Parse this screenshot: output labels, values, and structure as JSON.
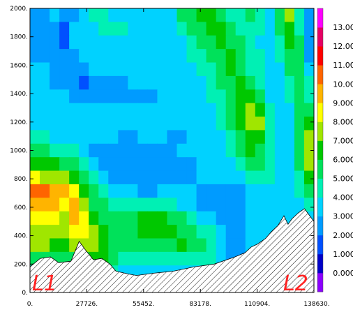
{
  "chart_data": {
    "type": "heatmap",
    "title": "",
    "xlabel": "",
    "ylabel": "",
    "xlim": [
      0,
      138630
    ],
    "ylim": [
      0,
      2000
    ],
    "x_ticks": [
      "0.",
      "27726.",
      "55452.",
      "83178.",
      "110904.",
      "138630."
    ],
    "x_tick_values": [
      0,
      27726,
      55452,
      83178,
      110904,
      138630
    ],
    "y_ticks": [
      "0.",
      "200.",
      "400.",
      "600.",
      "800.",
      "1000.",
      "1200.",
      "1400.",
      "1600.",
      "1800.",
      "2000."
    ],
    "y_tick_values": [
      0,
      200,
      400,
      600,
      800,
      1000,
      1200,
      1400,
      1600,
      1800,
      2000
    ],
    "grid": false,
    "colorbar": {
      "labels": [
        "0.000",
        "1.000",
        "2.000",
        "3.000",
        "4.000",
        "5.000",
        "6.000",
        "7.000",
        "8.000",
        "9.000",
        "10.00",
        "11.00",
        "12.00",
        "13.00"
      ],
      "level_values": [
        -1,
        0,
        1,
        2,
        3,
        4,
        5,
        6,
        7,
        8,
        9,
        10,
        11,
        12,
        13,
        14
      ],
      "colors": [
        "#8b00ff",
        "#0000c8",
        "#0050ff",
        "#009bff",
        "#00d2ff",
        "#00f0b4",
        "#00e15a",
        "#00c800",
        "#a0e600",
        "#ffff00",
        "#ffb400",
        "#ff6400",
        "#ff0000",
        "#e60064",
        "#ff00ff"
      ]
    },
    "terrain": {
      "x": [
        0,
        5000,
        10000,
        14000,
        20000,
        24000,
        27000,
        31000,
        35000,
        39000,
        42000,
        45000,
        48000,
        52000,
        60000,
        70000,
        80000,
        90000,
        100000,
        105000,
        108000,
        111000,
        115000,
        118000,
        121000,
        124000,
        126000,
        128000,
        131000,
        134000,
        138630
      ],
      "y": [
        180,
        240,
        250,
        210,
        220,
        360,
        300,
        230,
        240,
        200,
        150,
        140,
        130,
        120,
        135,
        150,
        180,
        200,
        250,
        280,
        320,
        340,
        380,
        430,
        470,
        540,
        480,
        520,
        560,
        590,
        500
      ]
    },
    "endpoints": [
      "L1",
      "L2"
    ],
    "values": [
      [
        2,
        2,
        3,
        2,
        2,
        3,
        4,
        4,
        3,
        3,
        3,
        3,
        3,
        3,
        3,
        5,
        5,
        6,
        6,
        5,
        4,
        4,
        5,
        4,
        3,
        5,
        7,
        4,
        2
      ],
      [
        2,
        2,
        2,
        1,
        3,
        3,
        3,
        4,
        4,
        4,
        3,
        3,
        3,
        3,
        3,
        4,
        5,
        5,
        6,
        6,
        5,
        4,
        4,
        4,
        3,
        5,
        6,
        4,
        2
      ],
      [
        2,
        2,
        2,
        1,
        3,
        3,
        3,
        3,
        3,
        3,
        3,
        3,
        3,
        3,
        3,
        3,
        4,
        5,
        5,
        6,
        5,
        5,
        4,
        3,
        3,
        4,
        6,
        5,
        2
      ],
      [
        2,
        2,
        2,
        2,
        2,
        3,
        3,
        3,
        3,
        3,
        3,
        3,
        3,
        3,
        3,
        3,
        4,
        4,
        5,
        5,
        6,
        5,
        4,
        4,
        3,
        4,
        5,
        5,
        2
      ],
      [
        3,
        3,
        2,
        2,
        2,
        2,
        3,
        3,
        3,
        3,
        3,
        3,
        3,
        3,
        3,
        3,
        3,
        4,
        4,
        5,
        6,
        5,
        4,
        4,
        3,
        3,
        5,
        5,
        3
      ],
      [
        3,
        3,
        2,
        2,
        2,
        1,
        2,
        2,
        2,
        2,
        3,
        3,
        3,
        3,
        3,
        3,
        3,
        3,
        4,
        5,
        5,
        6,
        5,
        4,
        3,
        3,
        4,
        5,
        4
      ],
      [
        3,
        3,
        3,
        3,
        2,
        2,
        2,
        2,
        2,
        2,
        2,
        2,
        2,
        3,
        3,
        3,
        3,
        3,
        4,
        4,
        5,
        6,
        6,
        5,
        3,
        3,
        4,
        5,
        4
      ],
      [
        3,
        3,
        3,
        3,
        3,
        3,
        3,
        3,
        3,
        3,
        3,
        3,
        3,
        3,
        3,
        3,
        3,
        3,
        3,
        4,
        5,
        6,
        7,
        6,
        4,
        3,
        3,
        5,
        5
      ],
      [
        3,
        3,
        3,
        3,
        3,
        3,
        3,
        3,
        3,
        3,
        3,
        3,
        3,
        3,
        3,
        3,
        3,
        3,
        3,
        4,
        5,
        6,
        7,
        7,
        4,
        3,
        3,
        5,
        6
      ],
      [
        4,
        4,
        3,
        3,
        3,
        3,
        3,
        3,
        3,
        2,
        2,
        3,
        3,
        3,
        2,
        2,
        3,
        3,
        3,
        3,
        4,
        5,
        6,
        6,
        4,
        3,
        3,
        5,
        7
      ],
      [
        5,
        5,
        4,
        4,
        4,
        3,
        2,
        2,
        2,
        2,
        2,
        2,
        2,
        2,
        2,
        3,
        3,
        3,
        3,
        3,
        4,
        5,
        6,
        5,
        4,
        3,
        3,
        5,
        7
      ],
      [
        6,
        6,
        6,
        5,
        5,
        4,
        3,
        2,
        2,
        2,
        2,
        2,
        2,
        2,
        2,
        2,
        2,
        3,
        3,
        3,
        3,
        4,
        5,
        5,
        4,
        3,
        3,
        5,
        7
      ],
      [
        8,
        7,
        7,
        7,
        6,
        5,
        4,
        3,
        2,
        2,
        2,
        2,
        2,
        2,
        2,
        2,
        2,
        3,
        3,
        3,
        3,
        3,
        4,
        4,
        4,
        3,
        3,
        4,
        6
      ],
      [
        10,
        10,
        9,
        9,
        8,
        6,
        5,
        4,
        3,
        3,
        3,
        2,
        2,
        3,
        3,
        3,
        3,
        2,
        2,
        2,
        2,
        2,
        3,
        3,
        3,
        3,
        3,
        4,
        5
      ],
      [
        9,
        9,
        9,
        8,
        9,
        7,
        5,
        5,
        4,
        4,
        4,
        4,
        4,
        4,
        4,
        3,
        3,
        2,
        2,
        2,
        2,
        2,
        3,
        3,
        3,
        3,
        3,
        3,
        4
      ],
      [
        8,
        8,
        8,
        7,
        9,
        8,
        6,
        5,
        5,
        5,
        5,
        6,
        6,
        6,
        5,
        5,
        4,
        3,
        3,
        2,
        2,
        2,
        3,
        3,
        3,
        3,
        3,
        3,
        3
      ],
      [
        7,
        7,
        7,
        7,
        8,
        8,
        7,
        6,
        5,
        5,
        5,
        6,
        6,
        6,
        6,
        5,
        5,
        4,
        4,
        3,
        2,
        2,
        3,
        3,
        3,
        3,
        3,
        3,
        3
      ],
      [
        7,
        7,
        6,
        6,
        7,
        7,
        7,
        6,
        5,
        5,
        5,
        5,
        5,
        5,
        5,
        6,
        5,
        5,
        4,
        3,
        2,
        2,
        3,
        3,
        3,
        3,
        3,
        3,
        3
      ],
      [
        5,
        5,
        5,
        5,
        5,
        5,
        6,
        6,
        5,
        4,
        4,
        4,
        4,
        4,
        4,
        4,
        4,
        4,
        4,
        3,
        2,
        2,
        3,
        3,
        3,
        3,
        3,
        3,
        3
      ],
      [
        3,
        3,
        3,
        3,
        3,
        3,
        4,
        4,
        4,
        3,
        3,
        3,
        3,
        3,
        3,
        3,
        3,
        3,
        3,
        3,
        3,
        3,
        3,
        3,
        3,
        3,
        3,
        3,
        3
      ],
      [
        2,
        2,
        2,
        2,
        2,
        2,
        2,
        2,
        2,
        2,
        2,
        2,
        2,
        2,
        2,
        2,
        2,
        2,
        2,
        2,
        2,
        2,
        2,
        2,
        2,
        2,
        2,
        2,
        2
      ]
    ]
  }
}
